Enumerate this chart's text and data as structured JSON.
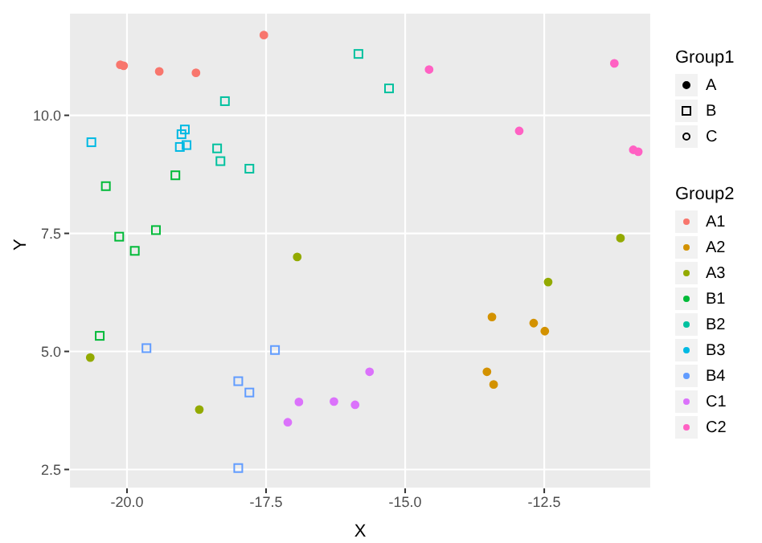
{
  "chart_data": {
    "type": "scatter",
    "xlabel": "X",
    "ylabel": "Y",
    "legend_title": "Group2",
    "annotations": [
      "Group1",
      "A",
      "B",
      "C"
    ],
    "xlim": [
      -21.04,
      -10.58
    ],
    "ylim": [
      2.1,
      12.17
    ],
    "xticks": [
      {
        "value": -20,
        "label": "-20.0"
      },
      {
        "value": -17.5,
        "label": "-17.5"
      },
      {
        "value": -15,
        "label": "-15.0"
      },
      {
        "value": -12.5,
        "label": "-12.5"
      }
    ],
    "yticks": [
      {
        "value": 2.5,
        "label": "2.5"
      },
      {
        "value": 5,
        "label": "5.0"
      },
      {
        "value": 7.5,
        "label": "7.5"
      },
      {
        "value": 10,
        "label": "10.0"
      }
    ],
    "grid": true,
    "legend": "right",
    "series": [
      {
        "name": "A1",
        "color": "#f8766d",
        "marker": "circle",
        "x": [
          -20.12,
          -20.06,
          -19.42,
          -18.76,
          -17.54
        ],
        "values": [
          11.07,
          11.05,
          10.93,
          10.9,
          11.7
        ]
      },
      {
        "name": "A2",
        "color": "#d39200",
        "marker": "circle",
        "x": [
          -13.44,
          -12.69,
          -12.49,
          -13.53,
          -13.41
        ],
        "values": [
          5.73,
          5.6,
          5.43,
          4.57,
          4.3
        ]
      },
      {
        "name": "A3",
        "color": "#93aa00",
        "marker": "circle",
        "x": [
          -16.94,
          -20.66,
          -18.7,
          -11.13,
          -12.43
        ],
        "values": [
          7.0,
          4.87,
          3.77,
          7.4,
          6.47
        ]
      },
      {
        "name": "B1",
        "color": "#00ba38",
        "marker": "square",
        "x": [
          -19.13,
          -20.38,
          -20.14,
          -19.86,
          -19.48,
          -20.49
        ],
        "values": [
          8.73,
          8.5,
          7.43,
          7.13,
          7.57,
          5.33
        ]
      },
      {
        "name": "B2",
        "color": "#00c19f",
        "marker": "square",
        "x": [
          -15.84,
          -15.29,
          -18.24,
          -18.38,
          -18.32,
          -17.8
        ],
        "values": [
          11.3,
          10.57,
          10.3,
          9.3,
          9.03,
          8.87
        ]
      },
      {
        "name": "B3",
        "color": "#00b9e3",
        "marker": "square",
        "x": [
          -20.64,
          -18.96,
          -19.02,
          -19.05,
          -18.93
        ],
        "values": [
          9.43,
          9.7,
          9.6,
          9.33,
          9.37
        ]
      },
      {
        "name": "B4",
        "color": "#619cff",
        "marker": "square",
        "x": [
          -19.65,
          -17.34,
          -18.0,
          -17.8,
          -18.0
        ],
        "values": [
          5.07,
          5.03,
          4.37,
          4.13,
          2.53
        ]
      },
      {
        "name": "C1",
        "color": "#db72fb",
        "marker": "circle",
        "x": [
          -17.11,
          -16.91,
          -16.28,
          -15.9,
          -15.64
        ],
        "values": [
          3.5,
          3.93,
          3.94,
          3.87,
          4.57
        ]
      },
      {
        "name": "C2",
        "color": "#ff61c3",
        "marker": "circle",
        "x": [
          -14.57,
          -12.95,
          -11.24,
          -10.9,
          -10.81
        ],
        "values": [
          10.97,
          9.67,
          11.1,
          9.27,
          9.23
        ]
      }
    ]
  }
}
